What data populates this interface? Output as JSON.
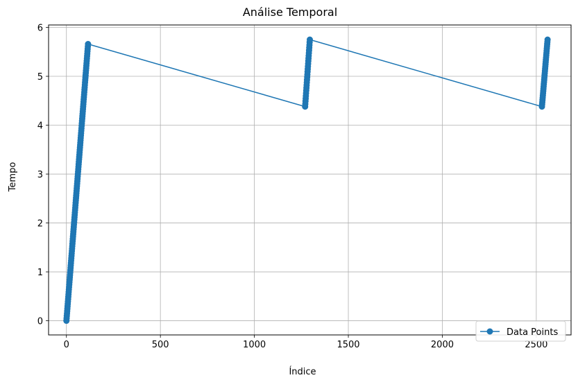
{
  "chart_data": {
    "type": "line",
    "title": "Análise Temporal",
    "xlabel": "Índice",
    "ylabel": "Tempo",
    "xlim": [
      -95,
      2685
    ],
    "ylim": [
      -0.29,
      6.05
    ],
    "xticks": [
      0,
      500,
      1000,
      1500,
      2000,
      2500
    ],
    "yticks": [
      0,
      1,
      2,
      3,
      4,
      5,
      6
    ],
    "grid": true,
    "legend_position": "lower-right",
    "marker": "circle",
    "series": [
      {
        "name": "Data Points",
        "color": "#1f77b4",
        "segments": [
          {
            "x_start": 0,
            "x_end": 115,
            "y_start": 0.0,
            "y_end": 5.66,
            "count": 116
          },
          {
            "x_start": 1270,
            "x_end": 1295,
            "y_start": 4.38,
            "y_end": 5.75,
            "count": 26
          },
          {
            "x_start": 2530,
            "x_end": 2560,
            "y_start": 4.38,
            "y_end": 5.75,
            "count": 31
          }
        ]
      }
    ]
  }
}
